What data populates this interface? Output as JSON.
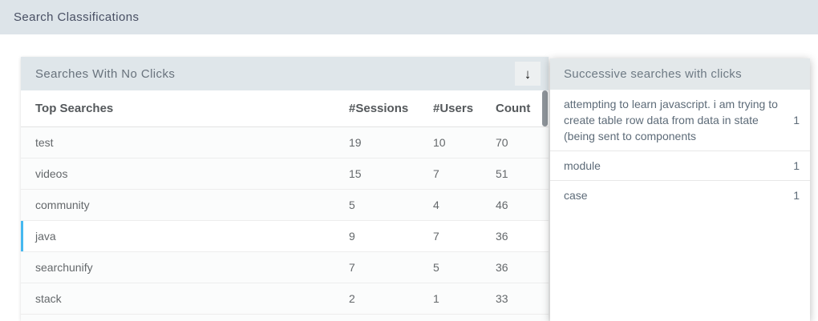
{
  "page": {
    "title": "Search Classifications"
  },
  "colors": {
    "topbar_bg": "#dde4e9",
    "panel_header_bg": "#dfe6ea",
    "popover_header_bg": "#e3e8ea",
    "row_highlight_accent": "#45b8f0"
  },
  "no_clicks": {
    "title": "Searches With No Clicks",
    "download_icon": "↓",
    "columns": [
      "Top Searches",
      "#Sessions",
      "#Users",
      "Count"
    ],
    "rows": [
      {
        "term": "test",
        "sessions": 19,
        "users": 10,
        "count": 70
      },
      {
        "term": "videos",
        "sessions": 15,
        "users": 7,
        "count": 51
      },
      {
        "term": "community",
        "sessions": 5,
        "users": 4,
        "count": 46
      },
      {
        "term": "java",
        "sessions": 9,
        "users": 7,
        "count": 36
      },
      {
        "term": "searchunify",
        "sessions": 7,
        "users": 5,
        "count": 36
      },
      {
        "term": "stack",
        "sessions": 2,
        "users": 1,
        "count": 33
      }
    ]
  },
  "successive": {
    "title": "Successive searches with clicks",
    "items": [
      {
        "term": "attempting to learn javascript. i am trying to create table row data from data in state (being sent to components",
        "count": 1
      },
      {
        "term": "module",
        "count": 1
      },
      {
        "term": "case",
        "count": 1
      }
    ]
  }
}
